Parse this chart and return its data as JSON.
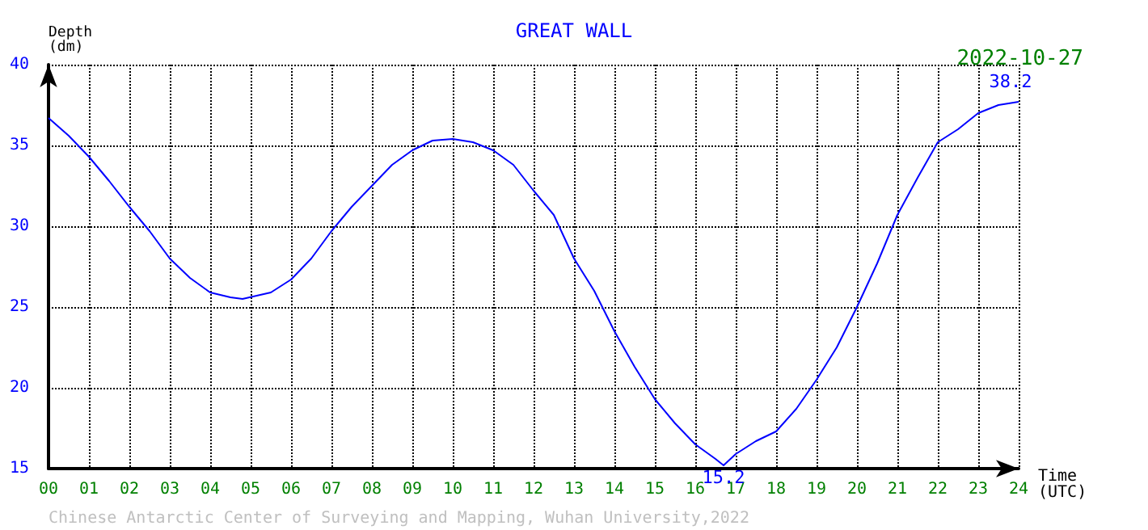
{
  "chart_data": {
    "type": "line",
    "title": "GREAT WALL",
    "xlabel": "Time\n(UTC)",
    "ylabel": "Depth\n(dm)",
    "annotations": [
      "2022-10-27",
      {
        "text": "38.2",
        "x": 23.8,
        "y": 38.2
      },
      {
        "text": "15.2",
        "x": 16.7,
        "y": 15.2
      },
      "Chinese Antarctic Center of Surveying and Mapping, Wuhan University,2022"
    ],
    "series": [
      {
        "color": "#0000ff",
        "x": [
          0,
          0.5,
          1,
          1.5,
          2,
          2.5,
          3,
          3.5,
          4,
          4.5,
          4.8,
          5.5,
          6,
          6.5,
          7,
          7.5,
          8,
          8.5,
          9,
          9.5,
          10,
          10.5,
          11,
          11.5,
          12,
          12.5,
          13,
          13.5,
          14,
          14.5,
          15,
          15.5,
          16,
          16.5,
          16.7,
          17,
          17.5,
          18,
          18.5,
          19,
          19.5,
          20,
          20.5,
          21,
          21.5,
          22,
          22.5,
          23,
          23.5,
          24
        ],
        "values": [
          36.7,
          35.6,
          34.3,
          32.8,
          31.2,
          29.7,
          28.0,
          26.8,
          25.9,
          25.6,
          25.5,
          25.9,
          26.7,
          28.0,
          29.7,
          31.2,
          32.5,
          33.8,
          34.7,
          35.3,
          35.4,
          35.2,
          34.7,
          33.8,
          32.2,
          30.7,
          28.0,
          26.0,
          23.5,
          21.3,
          19.3,
          17.8,
          16.5,
          15.6,
          15.2,
          15.9,
          16.7,
          17.3,
          18.7,
          20.5,
          22.5,
          25.0,
          27.7,
          30.7,
          33.0,
          35.2,
          36.0,
          37.0,
          37.5,
          37.7
        ]
      }
    ],
    "xlim": [
      0,
      24
    ],
    "xticks": [
      {
        "value": 0,
        "label": "00"
      },
      {
        "value": 1,
        "label": "01"
      },
      {
        "value": 2,
        "label": "02"
      },
      {
        "value": 3,
        "label": "03"
      },
      {
        "value": 4,
        "label": "04"
      },
      {
        "value": 5,
        "label": "05"
      },
      {
        "value": 6,
        "label": "06"
      },
      {
        "value": 7,
        "label": "07"
      },
      {
        "value": 8,
        "label": "08"
      },
      {
        "value": 9,
        "label": "09"
      },
      10,
      11,
      12,
      13,
      14,
      15,
      16,
      17,
      18,
      19,
      20,
      21,
      22,
      23,
      24
    ],
    "ylim": [
      15,
      40
    ],
    "yticks": [
      15,
      20,
      25,
      30,
      35,
      40
    ],
    "grid": true,
    "marker": "none",
    "line_style": "solid"
  }
}
